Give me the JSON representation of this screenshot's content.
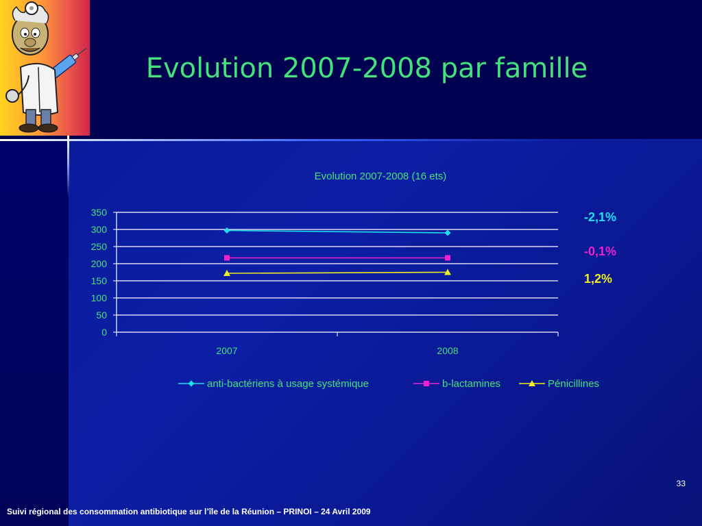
{
  "slide": {
    "title": "Evolution 2007-2008 par famille",
    "page_number": "33",
    "footer": "Suivi régional des consommation antibiotique sur l’île de la Réunion – PRINOI – 24  Avril  2009"
  },
  "colors": {
    "title": "#44e27c",
    "chart_text": "#44e27c",
    "series_antibacteriens": "#22ddee",
    "series_blactamines": "#ee22cc",
    "series_penicillines": "#eeee22"
  },
  "chart_data": {
    "type": "line",
    "title": "Evolution 2007-2008 (16 ets)",
    "categories": [
      "2007",
      "2008"
    ],
    "ylim": [
      0,
      350
    ],
    "yticks": [
      0,
      50,
      100,
      150,
      200,
      250,
      300,
      350
    ],
    "grid": true,
    "legend_position": "bottom",
    "series": [
      {
        "name": "anti-bactériens à usage systémique",
        "values": [
          297,
          290
        ],
        "marker": "diamond",
        "color": "#22ddee",
        "annotation": "-2,1%"
      },
      {
        "name": "b-lactamines",
        "values": [
          217,
          217
        ],
        "marker": "square",
        "color": "#ee22cc",
        "annotation": "-0,1%"
      },
      {
        "name": "Pénicillines",
        "values": [
          172,
          175
        ],
        "marker": "triangle",
        "color": "#eeee22",
        "annotation": "1,2%"
      }
    ]
  }
}
